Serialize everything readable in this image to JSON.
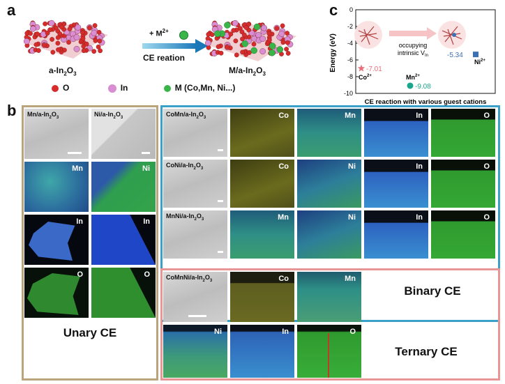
{
  "panel_a": {
    "letter": "a",
    "reactant_label_main": "a-In",
    "reactant_sub1": "2",
    "reactant_mid": "O",
    "reactant_sub2": "3",
    "reagent_main": "+ M",
    "reagent_sup": "2+",
    "reaction_label": "CE reation",
    "product_main": "M/a-In",
    "product_sub1": "2",
    "product_mid": "O",
    "product_sub2": "3",
    "legend": [
      {
        "label": "O",
        "color": "#d62c2c"
      },
      {
        "label": "In",
        "color": "#d98ed4"
      },
      {
        "label": "M (Co,Mn, Ni...)",
        "color": "#39b54a"
      }
    ]
  },
  "panel_c": {
    "letter": "c",
    "chart_data": {
      "type": "scatter",
      "xlabel": "CE reaction with various guest cations",
      "ylabel": "Energy (eV)",
      "ylim": [
        -10,
        0
      ],
      "yticks": [
        0,
        -2,
        -4,
        -6,
        -8,
        -10
      ],
      "annotation": "occupying intrinsic V",
      "annotation_sub": "In",
      "series": [
        {
          "name": "Co",
          "charge": "2+",
          "value": -7.01,
          "value_label": "-7.01",
          "color": "#e8707a",
          "marker": "star"
        },
        {
          "name": "Mn",
          "charge": "2+",
          "value": -9.08,
          "value_label": "-9.08",
          "color": "#1aa68a",
          "marker": "circle"
        },
        {
          "name": "Ni",
          "charge": "2+",
          "value": -5.34,
          "value_label": "-5.34",
          "color": "#3d6fb5",
          "marker": "square"
        }
      ]
    }
  },
  "panel_b": {
    "letter": "b",
    "unary_title": "Unary CE",
    "binary_title": "Binary CE",
    "ternary_title": "Ternary CE",
    "colors": {
      "unary": "#bba47c",
      "binary": "#3aa0c8",
      "ternary": "#e79595"
    },
    "unary": [
      {
        "sample_main": "Mn/a-In",
        "sub1": "2",
        "mid": "O",
        "sub2": "3",
        "maps": [
          "Mn",
          "In",
          "O"
        ]
      },
      {
        "sample_main": "Ni/a-In",
        "sub1": "2",
        "mid": "O",
        "sub2": "3",
        "maps": [
          "Ni",
          "In",
          "O"
        ]
      }
    ],
    "binary": [
      {
        "sample_main": "CoMn/a-In",
        "sub1": "2",
        "mid": "O",
        "sub2": "3",
        "maps": [
          "Co",
          "Mn",
          "In",
          "O"
        ]
      },
      {
        "sample_main": "CoNi/a-In",
        "sub1": "2",
        "mid": "O",
        "sub2": "3",
        "maps": [
          "Co",
          "Ni",
          "In",
          "O"
        ]
      },
      {
        "sample_main": "MnNi/a-In",
        "sub1": "2",
        "mid": "O",
        "sub2": "3",
        "maps": [
          "Mn",
          "Ni",
          "In",
          "O"
        ]
      }
    ],
    "ternary": {
      "sample_main": "CoMnNi/a-In",
      "sub1": "2",
      "mid": "O",
      "sub2": "3",
      "maps_row1": [
        "Co",
        "Mn"
      ],
      "maps_row2": [
        "Ni",
        "In",
        "O"
      ]
    }
  }
}
